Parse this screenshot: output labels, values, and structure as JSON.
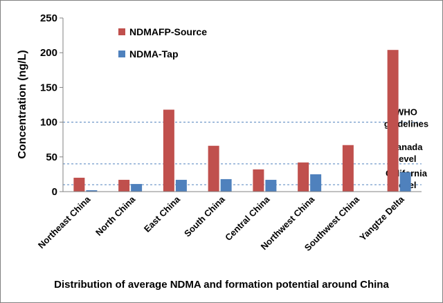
{
  "chart_data": {
    "type": "bar",
    "categories": [
      "Northeast China",
      "North China",
      "East China",
      "South China",
      "Central China",
      "Northwest China",
      "Southwest China",
      "Yangtze Delta"
    ],
    "series": [
      {
        "name": "NDMAFP-Source",
        "color": "#c0504d",
        "values": [
          20,
          17,
          118,
          66,
          32,
          42,
          67,
          204
        ]
      },
      {
        "name": "NDMA-Tap",
        "color": "#4f81bd",
        "values": [
          2,
          11,
          17,
          18,
          17,
          25,
          null,
          28
        ]
      }
    ],
    "ylabel": "Concentration (ng/L)",
    "ylim": [
      0,
      250
    ],
    "yticks": [
      0,
      50,
      100,
      150,
      200,
      250
    ],
    "legend_position": "top-left",
    "reference_lines": [
      {
        "value": 100,
        "label_lines": [
          "WHO",
          "guidelines"
        ]
      },
      {
        "value": 40,
        "label_lines": [
          "Canada",
          "level"
        ]
      },
      {
        "value": 10,
        "label_lines": [
          "California",
          "level"
        ]
      }
    ],
    "caption": "Distribution of average NDMA and formation potential around China"
  }
}
